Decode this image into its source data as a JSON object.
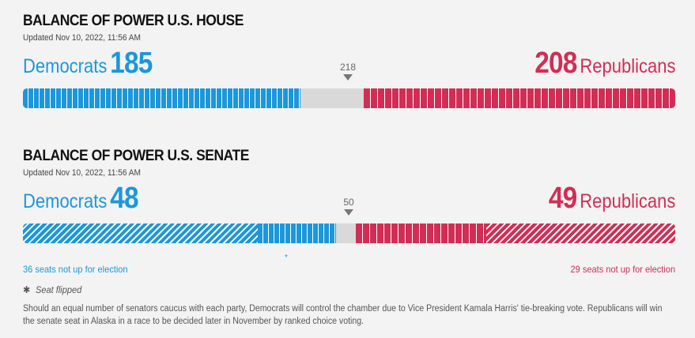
{
  "house": {
    "title": "BALANCE OF POWER U.S. HOUSE",
    "updated": "Updated Nov 10, 2022, 11:56 AM",
    "dem_label": "Democrats",
    "dem_seats": "185",
    "rep_label": "Republicans",
    "rep_seats": "208",
    "threshold": "218",
    "total_seats": 435
  },
  "senate": {
    "title": "BALANCE OF POWER U.S. SENATE",
    "updated": "Updated Nov 10, 2022, 11:56 AM",
    "dem_label": "Democrats",
    "dem_seats": "48",
    "rep_label": "Republicans",
    "rep_seats": "49",
    "threshold": "50",
    "total_seats": 100,
    "dem_not_up": 36,
    "rep_not_up": 29,
    "dem_not_up_text": "36 seats not up for election",
    "rep_not_up_text": "29 seats not up for election",
    "flip_marker": "*"
  },
  "legend": {
    "star": "✱",
    "text": "Seat flipped"
  },
  "note": "Should an equal number of senators caucus with each party, Democrats will control the chamber due to Vice President Kamala Harris' tie-breaking vote. Republicans will win the senate seat in Alaska in a race to be decided later in November by ranked choice voting.",
  "colors": {
    "democrat": "#1c97d9",
    "republican": "#d12e55",
    "undecided": "#d9d9d9"
  }
}
